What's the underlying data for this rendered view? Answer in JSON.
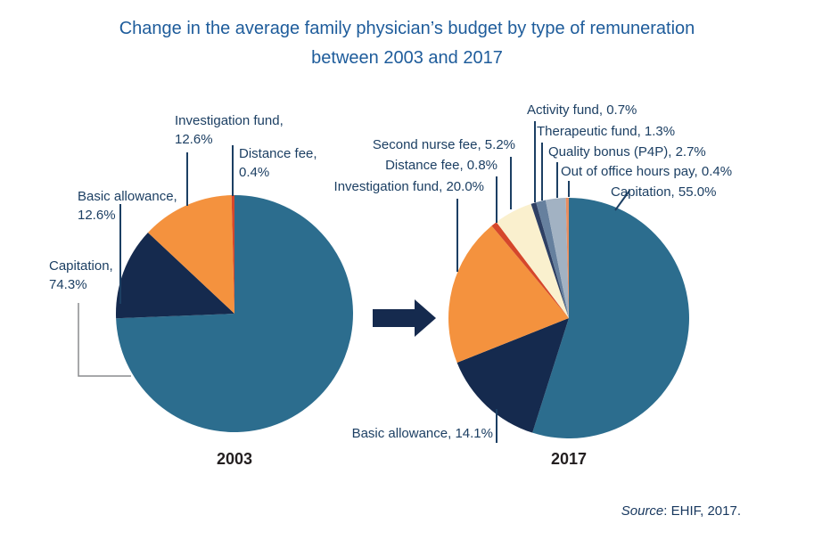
{
  "page": {
    "title_line1": "Change in the average family physician’s budget by type of remuneration",
    "title_line2": "between 2003 and 2017",
    "source_prefix": "Source",
    "source_rest": ": EHIF, 2017."
  },
  "colors": {
    "title": "#1E5C9B",
    "label": "#1C3F63",
    "caption": "#231F20",
    "source": "#17375E",
    "leader": "#1C3F63",
    "leader_gray": "#8A8C8E",
    "arrow": "#152A4E"
  },
  "chart_data": [
    {
      "type": "pie",
      "title": "2003",
      "units": "%",
      "legend_position": "none",
      "slices": [
        {
          "label": "Capitation",
          "value": 74.3,
          "display": "Capitation, 74.3%",
          "color": "#2C6D8E"
        },
        {
          "label": "Basic allowance",
          "value": 12.6,
          "display": "Basic allowance, 12.6%",
          "color": "#152A4E"
        },
        {
          "label": "Investigation fund",
          "value": 12.6,
          "display": "Investigation fund, 12.6%",
          "color": "#F4923E"
        },
        {
          "label": "Distance fee",
          "value": 0.4,
          "display": "Distance fee, 0.4%",
          "color": "#D5472B"
        }
      ]
    },
    {
      "type": "pie",
      "title": "2017",
      "units": "%",
      "legend_position": "none",
      "slices": [
        {
          "label": "Capitation",
          "value": 55.0,
          "display": "Capitation, 55.0%",
          "color": "#2C6D8E"
        },
        {
          "label": "Basic allowance",
          "value": 14.1,
          "display": "Basic allowance, 14.1%",
          "color": "#152A4E"
        },
        {
          "label": "Investigation fund",
          "value": 20.0,
          "display": "Investigation fund, 20.0%",
          "color": "#F4923E"
        },
        {
          "label": "Distance fee",
          "value": 0.8,
          "display": "Distance fee, 0.8%",
          "color": "#D5472B"
        },
        {
          "label": "Second nurse fee",
          "value": 5.2,
          "display": "Second nurse fee, 5.2%",
          "color": "#FAF0CE"
        },
        {
          "label": "Activity fund",
          "value": 0.7,
          "display": "Activity fund, 0.7%",
          "color": "#2E4064"
        },
        {
          "label": "Therapeutic fund",
          "value": 1.3,
          "display": "Therapeutic fund, 1.3%",
          "color": "#66809E"
        },
        {
          "label": "Quality bonus (P4P)",
          "value": 2.7,
          "display": "Quality bonus (P4P), 2.7%",
          "color": "#A2B2C3"
        },
        {
          "label": "Out of office hours pay",
          "value": 0.4,
          "display": "Out of office hours pay, 0.4%",
          "color": "#E98E60"
        }
      ]
    }
  ]
}
